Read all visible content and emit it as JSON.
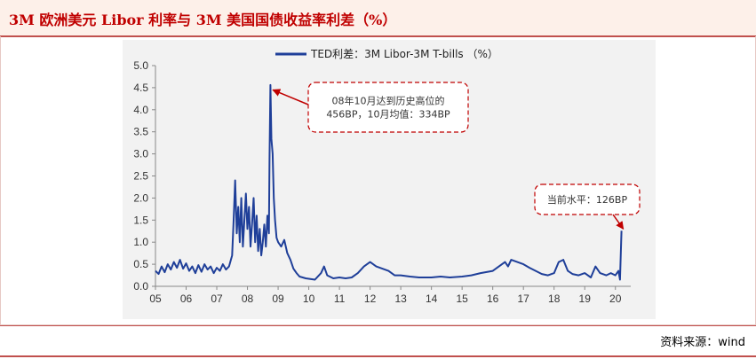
{
  "title": "3M 欧洲美元 Libor 利率与 3M 美国国债收益率利差（%）",
  "source": "资料来源：wind",
  "colors": {
    "series": "#1f3f99",
    "accent": "#c00000",
    "plot_bg": "#f2f2f2"
  },
  "chart_data": {
    "type": "line",
    "legend": "top-center",
    "grid": false,
    "series": [
      {
        "name": "TED利差：3M Libor-3M T-bills （%）",
        "points": [
          [
            2005.0,
            0.35
          ],
          [
            2005.1,
            0.28
          ],
          [
            2005.2,
            0.45
          ],
          [
            2005.3,
            0.32
          ],
          [
            2005.4,
            0.5
          ],
          [
            2005.5,
            0.38
          ],
          [
            2005.6,
            0.55
          ],
          [
            2005.7,
            0.42
          ],
          [
            2005.8,
            0.6
          ],
          [
            2005.9,
            0.4
          ],
          [
            2006.0,
            0.52
          ],
          [
            2006.1,
            0.35
          ],
          [
            2006.2,
            0.45
          ],
          [
            2006.3,
            0.3
          ],
          [
            2006.4,
            0.48
          ],
          [
            2006.5,
            0.33
          ],
          [
            2006.6,
            0.5
          ],
          [
            2006.7,
            0.38
          ],
          [
            2006.8,
            0.45
          ],
          [
            2006.9,
            0.3
          ],
          [
            2007.0,
            0.42
          ],
          [
            2007.1,
            0.35
          ],
          [
            2007.2,
            0.5
          ],
          [
            2007.3,
            0.38
          ],
          [
            2007.4,
            0.45
          ],
          [
            2007.5,
            0.7
          ],
          [
            2007.55,
            1.5
          ],
          [
            2007.6,
            2.4
          ],
          [
            2007.65,
            1.2
          ],
          [
            2007.7,
            1.8
          ],
          [
            2007.75,
            1.0
          ],
          [
            2007.8,
            2.0
          ],
          [
            2007.85,
            0.9
          ],
          [
            2007.9,
            1.5
          ],
          [
            2007.95,
            2.1
          ],
          [
            2008.0,
            1.3
          ],
          [
            2008.05,
            1.8
          ],
          [
            2008.1,
            0.9
          ],
          [
            2008.15,
            1.4
          ],
          [
            2008.2,
            2.0
          ],
          [
            2008.25,
            1.0
          ],
          [
            2008.3,
            1.6
          ],
          [
            2008.35,
            0.8
          ],
          [
            2008.4,
            1.3
          ],
          [
            2008.45,
            0.7
          ],
          [
            2008.5,
            1.0
          ],
          [
            2008.55,
            1.4
          ],
          [
            2008.6,
            0.9
          ],
          [
            2008.65,
            1.6
          ],
          [
            2008.7,
            1.2
          ],
          [
            2008.72,
            2.9
          ],
          [
            2008.75,
            4.56
          ],
          [
            2008.78,
            3.34
          ],
          [
            2008.82,
            3.0
          ],
          [
            2008.86,
            2.0
          ],
          [
            2008.9,
            1.5
          ],
          [
            2008.95,
            1.1
          ],
          [
            2009.0,
            1.0
          ],
          [
            2009.1,
            0.9
          ],
          [
            2009.2,
            1.05
          ],
          [
            2009.3,
            0.75
          ],
          [
            2009.4,
            0.6
          ],
          [
            2009.5,
            0.4
          ],
          [
            2009.6,
            0.3
          ],
          [
            2009.7,
            0.22
          ],
          [
            2009.8,
            0.2
          ],
          [
            2009.9,
            0.18
          ],
          [
            2010.0,
            0.17
          ],
          [
            2010.2,
            0.15
          ],
          [
            2010.4,
            0.3
          ],
          [
            2010.5,
            0.45
          ],
          [
            2010.6,
            0.25
          ],
          [
            2010.8,
            0.18
          ],
          [
            2011.0,
            0.2
          ],
          [
            2011.2,
            0.18
          ],
          [
            2011.4,
            0.2
          ],
          [
            2011.6,
            0.3
          ],
          [
            2011.8,
            0.45
          ],
          [
            2012.0,
            0.55
          ],
          [
            2012.2,
            0.45
          ],
          [
            2012.4,
            0.4
          ],
          [
            2012.6,
            0.35
          ],
          [
            2012.8,
            0.25
          ],
          [
            2013.0,
            0.25
          ],
          [
            2013.3,
            0.22
          ],
          [
            2013.6,
            0.2
          ],
          [
            2014.0,
            0.2
          ],
          [
            2014.3,
            0.22
          ],
          [
            2014.6,
            0.2
          ],
          [
            2015.0,
            0.22
          ],
          [
            2015.3,
            0.25
          ],
          [
            2015.6,
            0.3
          ],
          [
            2016.0,
            0.35
          ],
          [
            2016.2,
            0.45
          ],
          [
            2016.4,
            0.55
          ],
          [
            2016.5,
            0.45
          ],
          [
            2016.6,
            0.6
          ],
          [
            2016.8,
            0.55
          ],
          [
            2017.0,
            0.5
          ],
          [
            2017.2,
            0.42
          ],
          [
            2017.4,
            0.35
          ],
          [
            2017.6,
            0.28
          ],
          [
            2017.8,
            0.25
          ],
          [
            2018.0,
            0.3
          ],
          [
            2018.15,
            0.55
          ],
          [
            2018.3,
            0.6
          ],
          [
            2018.45,
            0.35
          ],
          [
            2018.6,
            0.28
          ],
          [
            2018.8,
            0.25
          ],
          [
            2019.0,
            0.3
          ],
          [
            2019.2,
            0.2
          ],
          [
            2019.35,
            0.45
          ],
          [
            2019.5,
            0.3
          ],
          [
            2019.7,
            0.25
          ],
          [
            2019.85,
            0.3
          ],
          [
            2020.0,
            0.25
          ],
          [
            2020.1,
            0.35
          ],
          [
            2020.15,
            0.15
          ],
          [
            2020.2,
            1.26
          ]
        ]
      }
    ],
    "x": {
      "range": [
        2005,
        2020.5
      ],
      "ticks": [
        2005,
        2006,
        2007,
        2008,
        2009,
        2010,
        2011,
        2012,
        2013,
        2014,
        2015,
        2016,
        2017,
        2018,
        2019,
        2020
      ],
      "tick_labels": [
        "05",
        "06",
        "07",
        "08",
        "09",
        "10",
        "11",
        "12",
        "13",
        "14",
        "15",
        "16",
        "17",
        "18",
        "19",
        "20"
      ]
    },
    "y": {
      "range": [
        0,
        5
      ],
      "ticks": [
        0,
        0.5,
        1,
        1.5,
        2,
        2.5,
        3,
        3.5,
        4,
        4.5,
        5
      ],
      "tick_labels": [
        "0.0",
        "0.5",
        "1.0",
        "1.5",
        "2.0",
        "2.5",
        "3.0",
        "3.5",
        "4.0",
        "4.5",
        "5.0"
      ]
    },
    "annotations": [
      {
        "text_lines": [
          "08年10月达到历史高位的",
          "456BP，10月均值：334BP"
        ],
        "target": [
          2008.77,
          4.45
        ]
      },
      {
        "text_lines": [
          "当前水平：126BP"
        ],
        "target": [
          2020.2,
          1.3
        ]
      }
    ]
  }
}
